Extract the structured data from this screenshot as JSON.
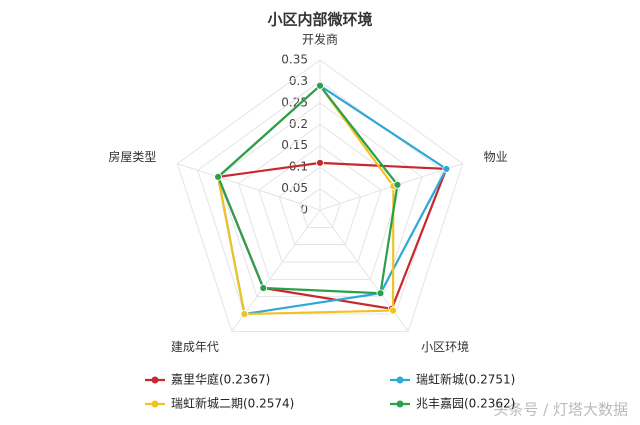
{
  "chart_data": {
    "type": "radar",
    "title": "小区内部微环境",
    "categories": [
      "开发商",
      "物业",
      "小区环境",
      "建成年代",
      "房屋类型"
    ],
    "rlim": [
      0,
      0.35
    ],
    "rticks": [
      0,
      0.05,
      0.1,
      0.15,
      0.2,
      0.25,
      0.3,
      0.35
    ],
    "grid": true,
    "series": [
      {
        "name": "嘉里华庭(0.2367)",
        "color": "#c8282e",
        "values": [
          0.11,
          0.31,
          0.285,
          0.225,
          0.25
        ]
      },
      {
        "name": "瑞虹新城(0.2751)",
        "color": "#2ea8d8",
        "values": [
          0.29,
          0.31,
          0.24,
          0.3,
          0.25
        ]
      },
      {
        "name": "瑞虹新城二期(0.2574)",
        "color": "#f2c320",
        "values": [
          0.29,
          0.18,
          0.29,
          0.3,
          0.25
        ]
      },
      {
        "name": "兆丰嘉园(0.2362)",
        "color": "#2aa04a",
        "values": [
          0.29,
          0.19,
          0.24,
          0.225,
          0.25
        ]
      }
    ],
    "watermark": "头条号 / 灯塔大数据"
  }
}
